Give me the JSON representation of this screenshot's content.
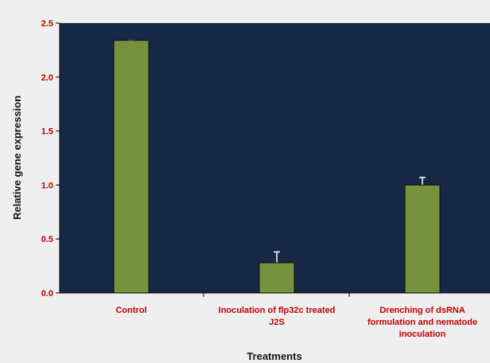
{
  "chart_data": {
    "type": "bar",
    "categories": [
      "Control",
      "Inoculation of flp32c treated J2S",
      "Drenching of dsRNA formulation and nematode inoculation"
    ],
    "category_lines": [
      [
        "Control"
      ],
      [
        "Inoculation of flp32c treated",
        "J2S"
      ],
      [
        "Drenching of dsRNA",
        "formulation and nematode",
        "inoculation"
      ]
    ],
    "values": [
      2.34,
      0.28,
      1.0
    ],
    "error": [
      0.0,
      0.1,
      0.07
    ],
    "xlabel": "Treatments",
    "ylabel": "Relative gene expression",
    "ylim": [
      0,
      2.5
    ],
    "yticks": [
      "0.0",
      "0.5",
      "1.0",
      "1.5",
      "2.0",
      "2.5"
    ],
    "grid": false,
    "colors": {
      "plot_background": "#172746",
      "bar": "#76923c",
      "bar_edge": "#0d0d0d",
      "error_bar": "#ffffff",
      "category_text": "#c00000",
      "axis_text": "#111111",
      "page_background": "#efefef"
    }
  }
}
